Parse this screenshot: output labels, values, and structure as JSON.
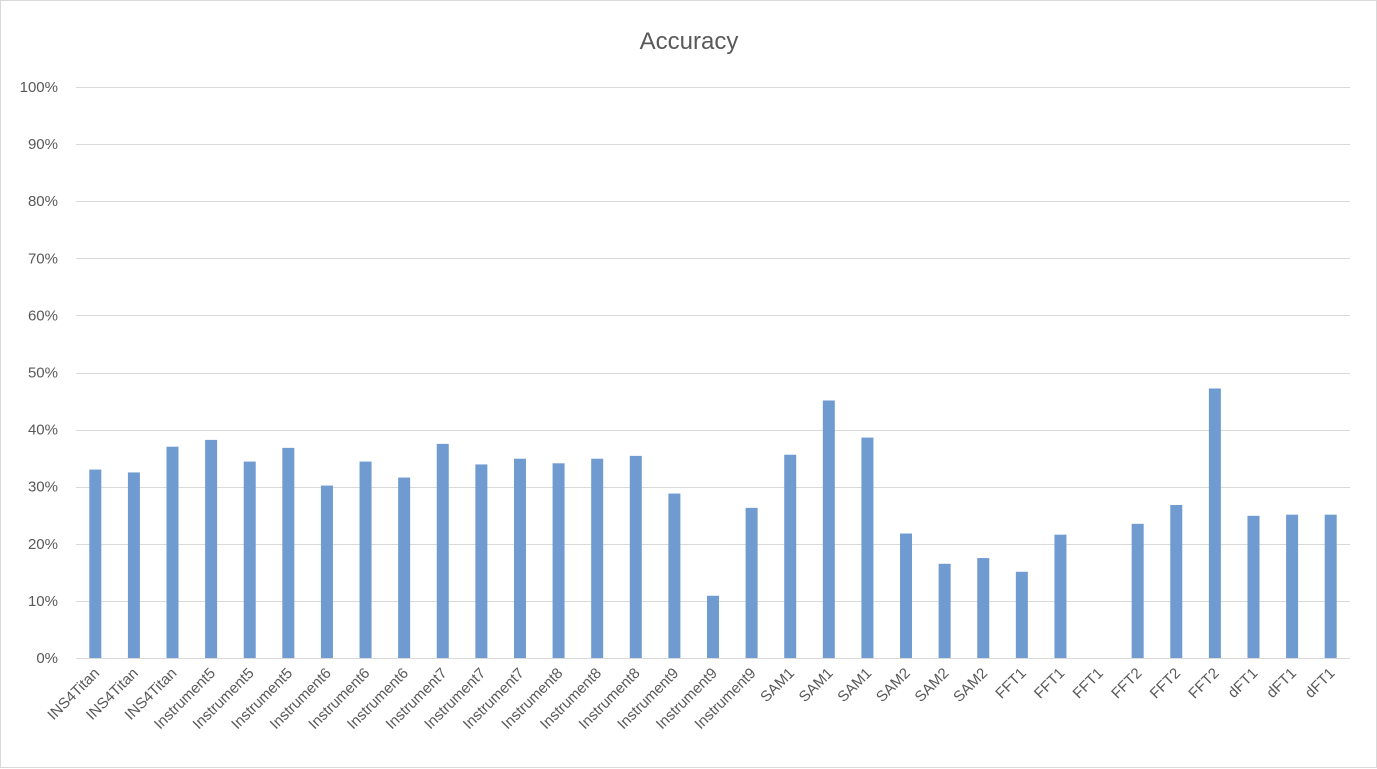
{
  "chart_data": {
    "type": "bar",
    "title": "Accuracy",
    "xlabel": "",
    "ylabel": "",
    "ylim": [
      0,
      100
    ],
    "y_tick_labels": [
      "0%",
      "10%",
      "20%",
      "30%",
      "40%",
      "50%",
      "60%",
      "70%",
      "80%",
      "90%",
      "100%"
    ],
    "grid": true,
    "legend": "none",
    "bar_color": "#6f9bd1",
    "categories": [
      "INS4Titan",
      "INS4Titan",
      "INS4Titan",
      "Instrument5",
      "Instrument5",
      "Instrument5",
      "Instrument6",
      "Instrument6",
      "Instrument6",
      "Instrument7",
      "Instrument7",
      "Instrument7",
      "Instrument8",
      "Instrument8",
      "Instrument8",
      "Instrument9",
      "Instrument9",
      "Instrument9",
      "SAM1",
      "SAM1",
      "SAM1",
      "SAM2",
      "SAM2",
      "SAM2",
      "FFT1",
      "FFT1",
      "FFT1",
      "FFT2",
      "FFT2",
      "FFT2",
      "dFT1",
      "dFT1",
      "dFT1"
    ],
    "values": [
      33.0,
      32.5,
      37.0,
      38.2,
      34.4,
      36.8,
      30.2,
      34.4,
      31.6,
      37.5,
      33.9,
      34.9,
      34.1,
      34.9,
      35.4,
      28.8,
      10.9,
      26.3,
      35.6,
      45.1,
      38.6,
      21.8,
      16.5,
      17.5,
      15.1,
      21.6,
      0,
      23.5,
      26.8,
      47.2,
      24.9,
      25.1,
      25.1
    ]
  }
}
